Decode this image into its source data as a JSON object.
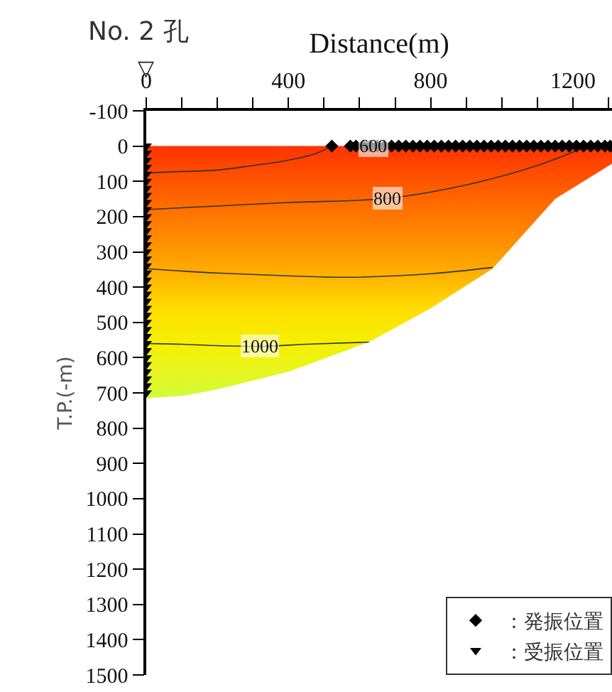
{
  "chart_data": {
    "type": "scatter",
    "title": "No. 2 孔",
    "xlabel": "Distance(m)",
    "ylabel": "T.P.(-m)",
    "xlim": [
      0,
      1310
    ],
    "xticks": [
      {
        "value": 0,
        "label": "0"
      },
      {
        "value": 100,
        "label": null
      },
      {
        "value": 200,
        "label": null
      },
      {
        "value": 300,
        "label": null
      },
      400,
      {
        "value": 500,
        "label": null
      },
      {
        "value": 600,
        "label": null
      },
      {
        "value": 700,
        "label": null
      },
      800,
      {
        "value": 900,
        "label": null
      },
      {
        "value": 1000,
        "label": null
      },
      {
        "value": 1100,
        "label": null
      },
      1200,
      {
        "value": 1300,
        "label": null
      }
    ],
    "ylim": [
      1500,
      -100
    ],
    "yticks": [
      -100,
      0,
      100,
      200,
      300,
      400,
      500,
      600,
      700,
      800,
      900,
      1000,
      1100,
      1200,
      1300,
      1400,
      1500
    ],
    "grid": false,
    "legend": "bottom right",
    "annotations": [
      "▽",
      {
        "text": "600",
        "x": 640,
        "y": 0
      },
      {
        "text": "800",
        "x": 678,
        "y": 148
      },
      {
        "text": "1000",
        "x": 318,
        "y": 568
      }
    ],
    "series": [
      {
        "type": "area",
        "colors": [
          "#ff3300",
          "#ff3300",
          "#ff4400",
          "#ff6600",
          "#ffaa00",
          "#ffdd00",
          "#f5f000",
          "#e8f520",
          "#d8fa30",
          "#d0fc38",
          "#ccff44"
        ],
        "x": [
          0,
          1310,
          1310,
          1150,
          974,
          800,
          626,
          400,
          200,
          106,
          0
        ],
        "values": [
          0,
          0,
          50,
          150,
          348,
          460,
          556,
          640,
          690,
          708,
          715
        ]
      },
      {
        "type": "line",
        "color": "#333333",
        "marker": "none",
        "x": [
          0,
          100,
          200,
          300,
          400,
          480,
          520
        ],
        "values": [
          76,
          72,
          68,
          55,
          40,
          20,
          0
        ]
      },
      {
        "type": "line",
        "color": "#333333",
        "marker": "none",
        "x": [
          0,
          200,
          400,
          680,
          900,
          1100,
          1230
        ],
        "values": [
          180,
          170,
          160,
          148,
          110,
          55,
          5
        ]
      },
      {
        "type": "line",
        "color": "#333333",
        "marker": "none",
        "x": [
          0,
          200,
          400,
          574,
          800,
          974
        ],
        "values": [
          348,
          360,
          368,
          372,
          362,
          344
        ]
      },
      {
        "type": "line",
        "color": "#333333",
        "marker": "none",
        "x": [
          0,
          100,
          200,
          318,
          450,
          626
        ],
        "values": [
          560,
          562,
          566,
          568,
          562,
          556
        ]
      },
      {
        "type": "scatter",
        "name": "：発振位置",
        "color": "#000000",
        "marker": "diamond",
        "x": [
          522,
          574,
          590,
          610,
          630,
          650,
          670,
          690,
          710,
          730,
          750,
          770,
          790,
          810,
          830,
          850,
          870,
          890,
          910,
          930,
          950,
          970,
          990,
          1010,
          1030,
          1050,
          1070,
          1090,
          1110,
          1130,
          1150,
          1170,
          1190,
          1210,
          1230,
          1250,
          1270,
          1290,
          1305
        ],
        "values": [
          0,
          0,
          0,
          0,
          0,
          0,
          0,
          0,
          0,
          0,
          0,
          0,
          0,
          0,
          0,
          0,
          0,
          0,
          0,
          0,
          0,
          0,
          0,
          0,
          0,
          0,
          0,
          0,
          0,
          0,
          0,
          0,
          0,
          0,
          0,
          0,
          0,
          0,
          0
        ]
      },
      {
        "type": "scatter",
        "name": "：受振位置",
        "color": "#000000",
        "marker": "triangle-down",
        "x": [
          0,
          0,
          0,
          0,
          0,
          0,
          0,
          0,
          0,
          0,
          0,
          0,
          0,
          0,
          0,
          0,
          0,
          0,
          0,
          0,
          0,
          0,
          0,
          0,
          0,
          0,
          0,
          0,
          0,
          0,
          0,
          0,
          0,
          0,
          0,
          0
        ],
        "values": [
          0,
          20,
          40,
          60,
          80,
          100,
          120,
          140,
          160,
          180,
          200,
          220,
          240,
          260,
          280,
          300,
          320,
          340,
          360,
          380,
          400,
          420,
          440,
          460,
          480,
          500,
          520,
          540,
          560,
          580,
          600,
          620,
          640,
          660,
          680,
          700
        ]
      }
    ]
  }
}
